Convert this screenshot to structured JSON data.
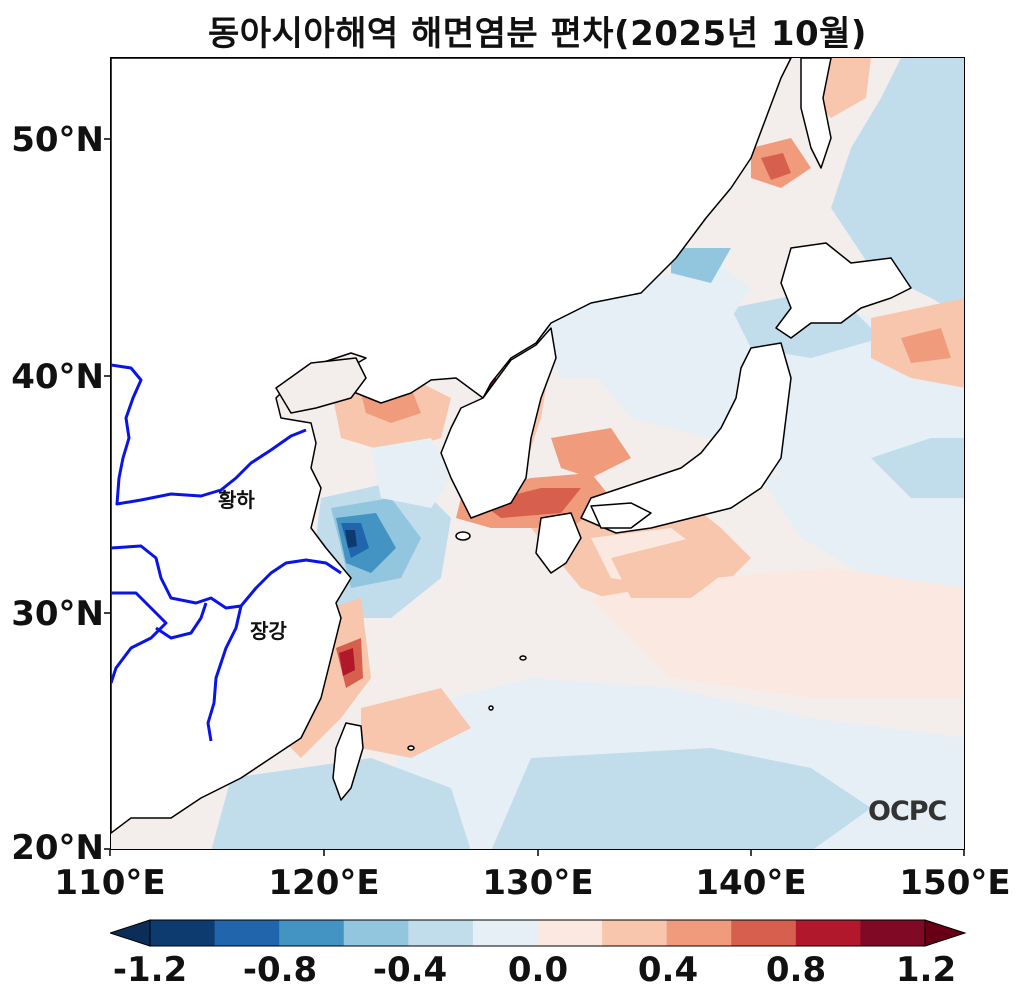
{
  "title": "동아시아해역 해면염분 편차(2025년 10월)",
  "map": {
    "lon_range": [
      110,
      150
    ],
    "lat_range": [
      20,
      53.5
    ],
    "y_ticks": [
      "50°N",
      "40°N",
      "30°N",
      "20°N"
    ],
    "x_ticks": [
      "110°E",
      "120°E",
      "130°E",
      "140°E",
      "150°E"
    ],
    "labels": {
      "yellow_river": "황하",
      "yangtze": "장강"
    },
    "logo": "OCPC"
  },
  "colorbar": {
    "tick_labels": [
      "-1.2",
      "-0.8",
      "-0.4",
      "0.0",
      "0.4",
      "0.8",
      "1.2"
    ],
    "levels": [
      -1.2,
      -1.0,
      -0.8,
      -0.6,
      -0.4,
      -0.2,
      0.0,
      0.2,
      0.4,
      0.6,
      0.8,
      1.0,
      1.2
    ],
    "colors": [
      "#0d3b70",
      "#2166ac",
      "#4393c3",
      "#92c5de",
      "#c1dceb",
      "#e6eff5",
      "#fbe9e1",
      "#f7c6ac",
      "#f09b7b",
      "#d6604d",
      "#b2182b",
      "#800a26"
    ],
    "extend_low_color": "#0b2d57",
    "extend_high_color": "#670014"
  },
  "colors": {
    "river": "#0a14e6",
    "coast": "#000000",
    "land": "#ffffff"
  }
}
